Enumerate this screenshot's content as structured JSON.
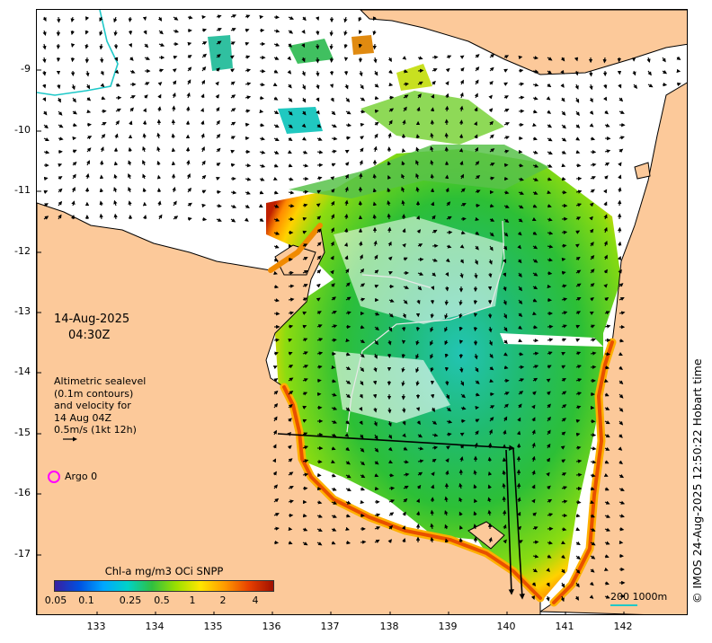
{
  "map": {
    "date": "14-Aug-2025",
    "time": "04:30Z",
    "legend_lines": [
      "Altimetric sealevel",
      "(0.1m contours)",
      "and velocity for",
      "14 Aug 04Z",
      "0.5m/s (1kt 12h)"
    ],
    "argo_label": "Argo 0",
    "colorbar": {
      "title": "Chl-a mg/m3 OCi SNPP",
      "ticks": [
        "0.05",
        "0.1",
        "0.25",
        "0.5",
        "1",
        "2",
        "4"
      ],
      "scale": "log",
      "colors": [
        "#3a1fa0",
        "#0050e0",
        "#00a6ff",
        "#00d2c8",
        "#30c040",
        "#9be000",
        "#ffe600",
        "#ff9a00",
        "#e84000",
        "#a01000"
      ]
    },
    "scalebar_label": "200  1000m",
    "credit": "© IMOS 24-Aug-2025 12:50:22 Hobart time",
    "x_ticks": [
      "133",
      "134",
      "135",
      "136",
      "137",
      "138",
      "139",
      "140",
      "141",
      "142"
    ],
    "y_ticks": [
      "-9",
      "-10",
      "-11",
      "-12",
      "-13",
      "-14",
      "-15",
      "-16",
      "-17"
    ],
    "colors": {
      "land": "#fcc99a",
      "coast": "#000000",
      "argo": "#ff00ff",
      "contour": "#e0e0e0",
      "bathymetry": "#1ec8c8"
    }
  }
}
